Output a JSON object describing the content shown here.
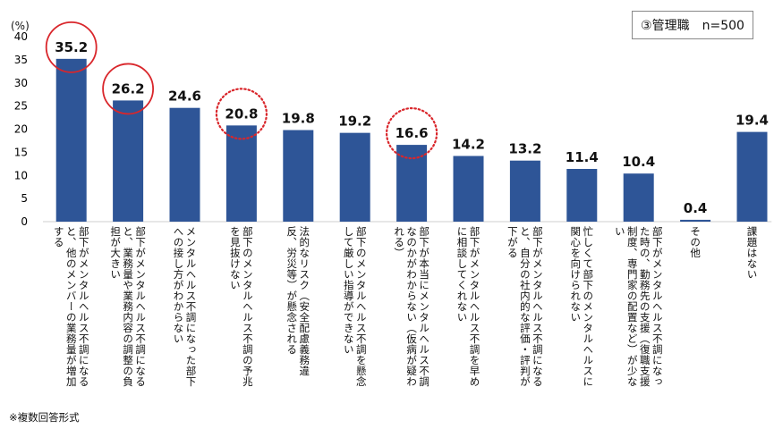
{
  "legend_box": "③管理職　n=500",
  "note": "※複数回答形式",
  "chart_data": {
    "type": "bar",
    "ylabel": "(%)",
    "ylim": [
      0,
      40
    ],
    "yticks": [
      0,
      5,
      10,
      15,
      20,
      25,
      30,
      35,
      40
    ],
    "grid": false,
    "categories": [
      "部下がメンタルヘルス不調になると、他のメンバーの業務量が増加する",
      "部下がメンタルヘルス不調になると、業務量や業務内容の調整の負担が大きい",
      "メンタルヘルス不調になった部下への接し方がわからない",
      "部下のメンタルヘルス不調の予兆を見抜けない",
      "法的なリスク（安全配慮義務違反、労災等）が懸念される",
      "部下のメンタルヘルス不調を懸念して厳しい指導ができない",
      "部下が本当にメンタルヘルス不調なのかがわからない（仮病が疑われる）",
      "部下がメンタルヘルス不調を早めに相談してくれない",
      "部下がメンタルヘルス不調になると、自分の社内的な評価・評判が下がる",
      "忙しくて部下のメンタルヘルスに関心を向けられない",
      "部下がメンタルヘルス不調になった時の、勤務先の支援（復職支援制度、専門家の配置など）が少ない",
      "その他",
      "課題はない"
    ],
    "category_lines": [
      [
        "部下がメンタルヘルス不調になる",
        "と、他のメンバーの業務量が増加",
        "する"
      ],
      [
        "部下がメンタルヘルス不調になる",
        "と、業務量や業務内容の調整の負",
        "担が大きい"
      ],
      [
        "メンタルヘルス不調になった部下",
        "への接し方がわからない"
      ],
      [
        "部下のメンタルヘルス不調の予兆",
        "を見抜けない"
      ],
      [
        "法的なリスク（安全配慮義務違",
        "反、労災等）が懸念される"
      ],
      [
        "部下のメンタルヘルス不調を懸念",
        "して厳しい指導ができない"
      ],
      [
        "部下が本当にメンタルヘルス不調",
        "なのかがわからない（仮病が疑わ",
        "れる）"
      ],
      [
        "部下がメンタルヘルス不調を早め",
        "に相談してくれない"
      ],
      [
        "部下がメンタルヘルス不調になる",
        "と、自分の社内的な評価・評判が",
        "下がる"
      ],
      [
        "忙しくて部下のメンタルヘルスに",
        "関心を向けられない"
      ],
      [
        "部下がメンタルヘルス不調になっ",
        "た時の、勤務先の支援（復職支援",
        "制度、専門家の配置など）が少な",
        "い"
      ],
      [
        "その他"
      ],
      [
        "課題はない"
      ]
    ],
    "values": [
      35.2,
      26.2,
      24.6,
      20.8,
      19.8,
      19.2,
      16.6,
      14.2,
      13.2,
      11.4,
      10.4,
      0.4,
      19.4
    ],
    "value_labels": [
      "35.2",
      "26.2",
      "24.6",
      "20.8",
      "19.8",
      "19.2",
      "16.6",
      "14.2",
      "13.2",
      "11.4",
      "10.4",
      "0.4",
      "19.4"
    ],
    "bar_color": "#2e5597",
    "highlight_color": "#d9262b",
    "highlights": [
      {
        "index": 0,
        "style": "solid"
      },
      {
        "index": 1,
        "style": "solid"
      },
      {
        "index": 3,
        "style": "dotted"
      },
      {
        "index": 6,
        "style": "dotted"
      }
    ]
  }
}
